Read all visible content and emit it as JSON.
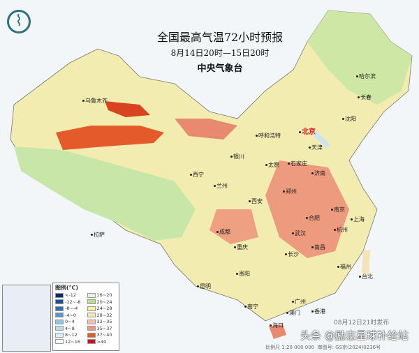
{
  "header": {
    "title": "全国最高气温72小时预报",
    "period": "8月14日20时—15日20时",
    "agency": "中央气象台"
  },
  "logo_icon": "cma-dragon-logo",
  "cities": [
    {
      "name": "乌鲁木齐",
      "capital": false
    },
    {
      "name": "呼和浩特",
      "capital": false
    },
    {
      "name": "北京",
      "capital": true
    },
    {
      "name": "天津",
      "capital": false
    },
    {
      "name": "哈尔滨",
      "capital": false
    },
    {
      "name": "长春",
      "capital": false
    },
    {
      "name": "沈阳",
      "capital": false
    },
    {
      "name": "银川",
      "capital": false
    },
    {
      "name": "太原",
      "capital": false
    },
    {
      "name": "石家庄",
      "capital": false
    },
    {
      "name": "济南",
      "capital": false
    },
    {
      "name": "西宁",
      "capital": false
    },
    {
      "name": "兰州",
      "capital": false
    },
    {
      "name": "西安",
      "capital": false
    },
    {
      "name": "郑州",
      "capital": false
    },
    {
      "name": "合肥",
      "capital": false
    },
    {
      "name": "南京",
      "capital": false
    },
    {
      "name": "上海",
      "capital": false
    },
    {
      "name": "杭州",
      "capital": false
    },
    {
      "name": "武汉",
      "capital": false
    },
    {
      "name": "成都",
      "capital": false
    },
    {
      "name": "重庆",
      "capital": false
    },
    {
      "name": "拉萨",
      "capital": false
    },
    {
      "name": "长沙",
      "capital": false
    },
    {
      "name": "南昌",
      "capital": false
    },
    {
      "name": "福州",
      "capital": false
    },
    {
      "name": "台北",
      "capital": false
    },
    {
      "name": "贵阳",
      "capital": false
    },
    {
      "name": "昆明",
      "capital": false
    },
    {
      "name": "南宁",
      "capital": false
    },
    {
      "name": "广州",
      "capital": false
    },
    {
      "name": "澳门",
      "capital": false
    },
    {
      "name": "香港",
      "capital": false
    },
    {
      "name": "海口",
      "capital": false
    }
  ],
  "legend": {
    "title": "图例(℃)",
    "items": [
      {
        "label": "<-12",
        "color": "#0b2a6b"
      },
      {
        "label": "16~20",
        "color": "#e6f5dc"
      },
      {
        "label": "-12~-8",
        "color": "#1f4f94"
      },
      {
        "label": "20~24",
        "color": "#b8e08c"
      },
      {
        "label": "-8~-4",
        "color": "#2f6fb8"
      },
      {
        "label": "24~28",
        "color": "#f5f0a0"
      },
      {
        "label": "-4~0",
        "color": "#4f95d4"
      },
      {
        "label": "28~32",
        "color": "#f3e3b6"
      },
      {
        "label": "0~4",
        "color": "#8ec4e6"
      },
      {
        "label": "32~35",
        "color": "#f2c0a8"
      },
      {
        "label": "4~8",
        "color": "#b9dcee"
      },
      {
        "label": "35~37",
        "color": "#e8968a"
      },
      {
        "label": "8~12",
        "color": "#d8eef0"
      },
      {
        "label": "37~40",
        "color": "#e0602a"
      },
      {
        "label": "12~16",
        "color": "#f4faf2"
      },
      {
        "label": ">40",
        "color": "#c8141c"
      }
    ]
  },
  "footer": {
    "scale": "比例尺 1:20 000 000",
    "approval": "审图号: GS京(2024)0236号",
    "published": "08月12日21时发布"
  },
  "watermark": "头条 @励志星球补给站"
}
